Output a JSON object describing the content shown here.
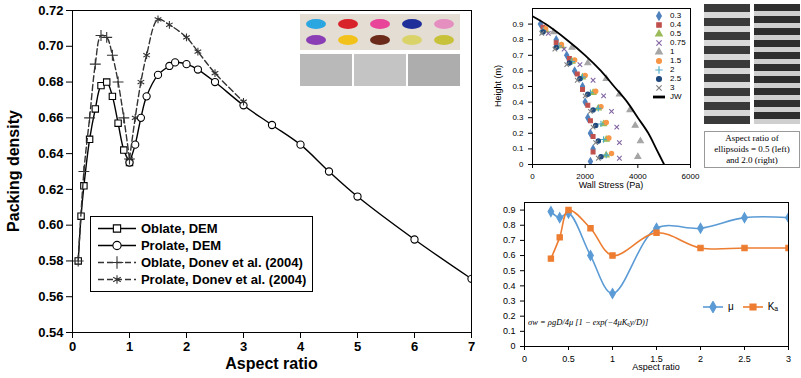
{
  "chart_data": [
    {
      "type": "line",
      "xlabel": "Aspect ratio",
      "ylabel": "Packing density",
      "xlim": [
        0,
        7
      ],
      "ylim": [
        0.54,
        0.72
      ],
      "xticks": [
        0,
        1,
        2,
        3,
        4,
        5,
        6,
        7
      ],
      "yticks": [
        0.54,
        0.56,
        0.58,
        {
          "value": 0.6,
          "label": "0.60"
        },
        0.62,
        0.64,
        0.66,
        0.68,
        {
          "value": 0.7,
          "label": "0.70"
        },
        0.72
      ],
      "legend": "bottom-left",
      "series": [
        {
          "name": "Oblate, DEM",
          "color": "#000000",
          "marker": "square",
          "line_style": "solid",
          "x": [
            0.1,
            0.15,
            0.2,
            0.3,
            0.4,
            0.5,
            0.6,
            0.7,
            0.8,
            0.9,
            1.0
          ],
          "values": [
            0.58,
            0.605,
            0.622,
            0.648,
            0.665,
            0.678,
            0.68,
            0.672,
            0.657,
            0.642,
            0.635
          ]
        },
        {
          "name": "Prolate, DEM",
          "color": "#000000",
          "marker": "circle",
          "line_style": "solid",
          "x": [
            1.0,
            1.1,
            1.2,
            1.3,
            1.5,
            1.7,
            1.8,
            2.0,
            2.2,
            2.5,
            3.0,
            3.5,
            4.0,
            4.5,
            5.0,
            6.0,
            7.0
          ],
          "values": [
            0.635,
            0.645,
            0.66,
            0.672,
            0.684,
            0.689,
            0.691,
            0.69,
            0.687,
            0.68,
            0.667,
            0.656,
            0.645,
            0.63,
            0.616,
            0.592,
            0.57
          ]
        },
        {
          "name": "Oblate, Donev et al. (2004)",
          "color": "#333333",
          "marker": "plus",
          "line_style": "dashed",
          "x": [
            0.1,
            0.2,
            0.3,
            0.4,
            0.5,
            0.6,
            0.7,
            0.8,
            0.9,
            1.0
          ],
          "values": [
            0.58,
            0.63,
            0.66,
            0.69,
            0.706,
            0.705,
            0.695,
            0.68,
            0.66,
            0.637
          ]
        },
        {
          "name": "Prolate, Donev et al. (2004)",
          "color": "#333333",
          "marker": "asterisk",
          "line_style": "dashed",
          "x": [
            1.0,
            1.1,
            1.2,
            1.3,
            1.5,
            1.7,
            2.0,
            2.2,
            2.5,
            3.0
          ],
          "values": [
            0.637,
            0.66,
            0.68,
            0.695,
            0.715,
            0.712,
            0.705,
            0.697,
            0.685,
            0.669
          ]
        }
      ]
    },
    {
      "type": "scatter",
      "xlabel": "Wall Stress (Pa)",
      "ylabel": "Height (m)",
      "xlim": [
        0,
        6000
      ],
      "ylim": [
        0,
        1
      ],
      "xticks": [
        0,
        2000,
        4000,
        6000
      ],
      "yticks": [
        0,
        0.1,
        0.2,
        0.3,
        0.4,
        0.5,
        0.6,
        0.7,
        0.8,
        0.9
      ],
      "legend": "top-right",
      "annotations": [
        "Aspect ratio of ellipsoids = 0.5 (left) and 2.0 (right)"
      ],
      "series": [
        {
          "name": "0.3",
          "color": "#4F81BD",
          "marker": "diamond",
          "x": [
            300,
            900,
            1300,
            1600,
            1900,
            2000,
            2100,
            2200,
            2300,
            2200
          ],
          "values": [
            0.9,
            0.8,
            0.7,
            0.6,
            0.5,
            0.4,
            0.3,
            0.2,
            0.1,
            0.02
          ]
        },
        {
          "name": "0.4",
          "color": "#C0504D",
          "marker": "square",
          "x": [
            400,
            900,
            1400,
            1700,
            1900,
            2100,
            2200,
            2300,
            2300
          ],
          "values": [
            0.88,
            0.78,
            0.68,
            0.58,
            0.48,
            0.38,
            0.28,
            0.18,
            0.08
          ]
        },
        {
          "name": "0.5",
          "color": "#9BBB59",
          "marker": "triangle",
          "x": [
            500,
            1100,
            1500,
            1900,
            2300,
            2500,
            2700,
            2800,
            2800
          ],
          "values": [
            0.86,
            0.76,
            0.66,
            0.56,
            0.46,
            0.36,
            0.26,
            0.16,
            0.06
          ]
        },
        {
          "name": "0.75",
          "color": "#8064A2",
          "marker": "times",
          "x": [
            600,
            1200,
            1800,
            2300,
            2700,
            3000,
            3200,
            3300,
            3300
          ],
          "values": [
            0.84,
            0.74,
            0.64,
            0.54,
            0.44,
            0.34,
            0.24,
            0.14,
            0.04
          ]
        },
        {
          "name": "1",
          "color": "#A5A5A5",
          "marker": "triangle",
          "x": [
            800,
            1500,
            2100,
            2800,
            3300,
            3700,
            3900,
            4100,
            4000
          ],
          "values": [
            0.85,
            0.75,
            0.65,
            0.55,
            0.45,
            0.35,
            0.25,
            0.15,
            0.05
          ]
        },
        {
          "name": "1.5",
          "color": "#F79646",
          "marker": "circle",
          "x": [
            500,
            1100,
            1600,
            2000,
            2400,
            2600,
            2800,
            2900,
            3000
          ],
          "values": [
            0.87,
            0.77,
            0.67,
            0.57,
            0.47,
            0.37,
            0.27,
            0.17,
            0.07
          ]
        },
        {
          "name": "2",
          "color": "#4BACC6",
          "marker": "plus",
          "x": [
            400,
            1000,
            1500,
            1900,
            2200,
            2500,
            2600,
            2700,
            2800
          ],
          "values": [
            0.86,
            0.76,
            0.66,
            0.56,
            0.46,
            0.36,
            0.26,
            0.16,
            0.06
          ]
        },
        {
          "name": "2.5",
          "color": "#1F497D",
          "marker": "circle",
          "x": [
            400,
            900,
            1400,
            1800,
            2100,
            2300,
            2400,
            2500,
            2600
          ],
          "values": [
            0.85,
            0.75,
            0.65,
            0.55,
            0.45,
            0.35,
            0.25,
            0.15,
            0.05
          ]
        },
        {
          "name": "3",
          "color": "#7F7F7F",
          "marker": "times",
          "x": [
            350,
            850,
            1300,
            1700,
            2000,
            2200,
            2300,
            2400,
            2500
          ],
          "values": [
            0.84,
            0.74,
            0.64,
            0.54,
            0.44,
            0.34,
            0.24,
            0.14,
            0.04
          ]
        },
        {
          "name": "JW",
          "type": "line",
          "color": "#000000",
          "line_style": "solid",
          "x": [
            0,
            500,
            1300,
            2000,
            2600,
            3100,
            3600,
            4000,
            4400,
            4700,
            5000
          ],
          "values": [
            0.95,
            0.9,
            0.8,
            0.7,
            0.6,
            0.5,
            0.4,
            0.3,
            0.2,
            0.1,
            0
          ]
        }
      ]
    },
    {
      "type": "line",
      "xlabel": "Aspect ratio",
      "xlim": [
        0,
        3
      ],
      "ylim": [
        0,
        0.95
      ],
      "xticks": [
        0,
        0.5,
        1,
        1.5,
        2,
        2.5,
        3
      ],
      "yticks": [
        0,
        0.1,
        0.2,
        0.3,
        0.4,
        0.5,
        0.6,
        0.7,
        0.8,
        0.9
      ],
      "legend": "bottom-right",
      "annotations": [
        "σw = ρgD/4μ [1 − exp(−4μKₐy/D)]"
      ],
      "series": [
        {
          "name": "μ",
          "color": "#5B9BD5",
          "marker": "diamond",
          "line_style": "solid",
          "x": [
            0.3,
            0.4,
            0.5,
            0.75,
            1,
            1.5,
            2,
            2.5,
            3
          ],
          "values": [
            0.89,
            0.85,
            0.88,
            0.6,
            0.35,
            0.78,
            0.78,
            0.85,
            0.85
          ]
        },
        {
          "name": "Kₐ",
          "color": "#ED7D31",
          "marker": "square",
          "line_style": "solid",
          "x": [
            0.3,
            0.4,
            0.5,
            0.75,
            1,
            1.5,
            2,
            2.5,
            3
          ],
          "values": [
            0.58,
            0.72,
            0.9,
            0.78,
            0.6,
            0.75,
            0.65,
            0.65,
            0.65
          ]
        }
      ]
    }
  ]
}
